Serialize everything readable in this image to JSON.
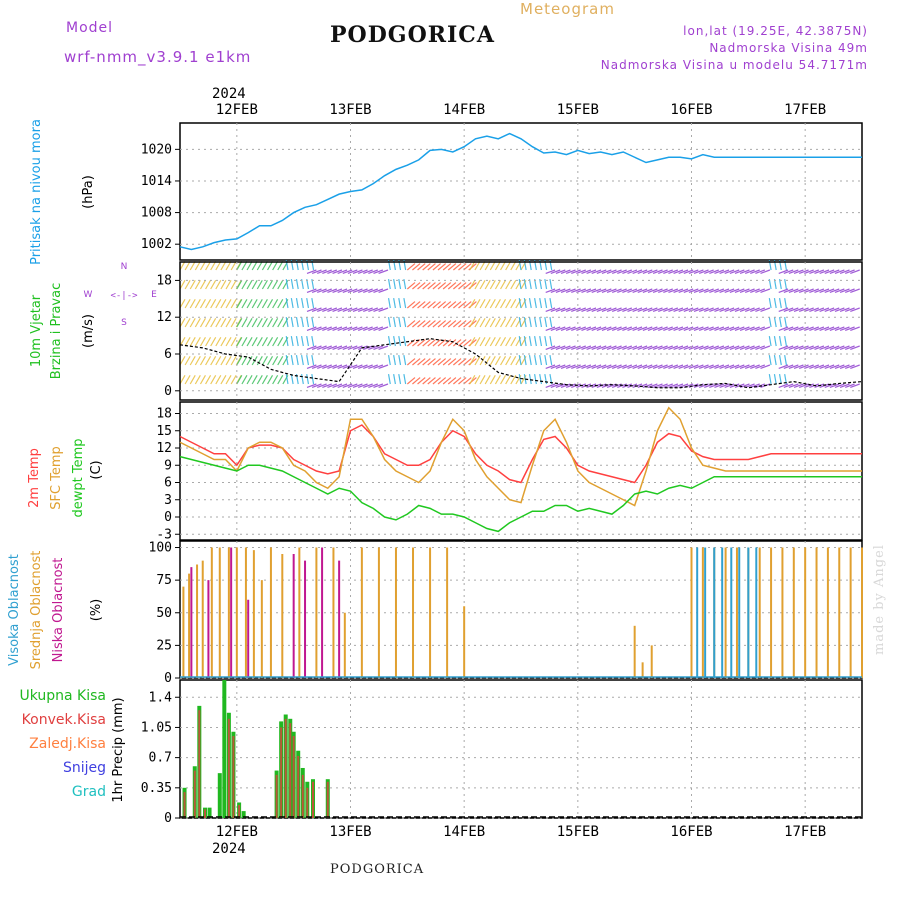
{
  "header": {
    "model_label": "Model",
    "model_name": "wrf-nmm_v3.9.1 e1km",
    "title": "PODGORICA",
    "meteogram_label": "Meteogram",
    "lonlat": "lon,lat (19.25E, 42.3875N)",
    "elevation": "Nadmorska Visina 49m",
    "elevation_model": "Nadmorska Visina u modelu 54.7171m"
  },
  "footer": {
    "station": "PODGORICA",
    "credit": "made by Angel"
  },
  "colors": {
    "pressure": "#1aa0e8",
    "temp2m": "#ff4040",
    "sfc": "#e0a030",
    "dewpt": "#20c820",
    "high_cloud": "#30a0d0",
    "mid_cloud": "#e0a030",
    "low_cloud": "#c01890",
    "precip_total": "#20b820",
    "precip_conv": "#e04040",
    "grid": "#aaaaaa"
  },
  "chart_data": [
    {
      "type": "line",
      "panel": "pressure",
      "ylabel_lines": [
        "Pritisak na nivou mora",
        "(hPa)"
      ],
      "ylim": [
        999,
        1025
      ],
      "yticks": [
        1002,
        1008,
        1014,
        1020
      ],
      "x_dates": [
        "12FEB",
        "13FEB",
        "14FEB",
        "15FEB",
        "16FEB",
        "17FEB"
      ],
      "year": "2024",
      "x": [
        0,
        0.1,
        0.2,
        0.3,
        0.4,
        0.5,
        0.6,
        0.7,
        0.8,
        0.9,
        1.0,
        1.1,
        1.2,
        1.3,
        1.4,
        1.5,
        1.6,
        1.7,
        1.8,
        1.9,
        2.0,
        2.1,
        2.2,
        2.3,
        2.4,
        2.5,
        2.6,
        2.7,
        2.8,
        2.9,
        3.0,
        3.1,
        3.2,
        3.3,
        3.4,
        3.5,
        3.6,
        3.7,
        3.8,
        3.9,
        4.0,
        4.1,
        4.2,
        4.3,
        4.4,
        4.5,
        4.6,
        4.7,
        4.8,
        4.9,
        5.0,
        5.1,
        5.2,
        5.3,
        5.4,
        5.5,
        5.6,
        5.7,
        5.8,
        5.9,
        6.0
      ],
      "values": [
        1001.5,
        1001.0,
        1001.5,
        1002.3,
        1002.8,
        1003.0,
        1004.2,
        1005.5,
        1005.5,
        1006.5,
        1008.0,
        1009.0,
        1009.5,
        1010.5,
        1011.5,
        1012.0,
        1012.3,
        1013.5,
        1015.0,
        1016.2,
        1017.0,
        1018.0,
        1019.8,
        1020.0,
        1019.5,
        1020.5,
        1022.0,
        1022.5,
        1022.0,
        1023.0,
        1022.0,
        1020.5,
        1019.3,
        1019.5,
        1019.0,
        1019.8,
        1019.2,
        1019.5,
        1019.0,
        1019.5,
        1018.5,
        1017.5,
        1018.0,
        1018.5,
        1018.5,
        1018.2,
        1019.0,
        1018.5,
        1018.5,
        1018.5,
        1018.5,
        1018.5,
        1018.5,
        1018.5,
        1018.5,
        1018.5,
        1018.5,
        1018.5,
        1018.5,
        1018.5,
        1018.5
      ]
    },
    {
      "type": "line",
      "panel": "wind",
      "ylabel_lines": [
        "10m Vjetar",
        "Brzina i Pravac",
        "(m/s)"
      ],
      "compass_labels": [
        "N",
        "W",
        "E",
        "S"
      ],
      "ylim": [
        -1.5,
        21
      ],
      "yticks": [
        0,
        6,
        12,
        18
      ],
      "x": [
        0,
        0.2,
        0.4,
        0.6,
        0.8,
        1.0,
        1.2,
        1.4,
        1.6,
        1.8,
        2.0,
        2.2,
        2.4,
        2.6,
        2.8,
        3.0,
        3.2,
        3.4,
        3.6,
        3.8,
        4.0,
        4.2,
        4.4,
        4.6,
        4.8,
        5.0,
        5.2,
        5.4,
        5.6,
        5.8,
        6.0
      ],
      "values": [
        7.5,
        7.0,
        6.0,
        5.5,
        3.5,
        2.5,
        2.0,
        1.5,
        7.0,
        7.5,
        8.0,
        8.5,
        8.0,
        6.0,
        3.0,
        2.0,
        1.5,
        1.0,
        0.8,
        1.0,
        0.8,
        0.5,
        0.5,
        1.0,
        1.2,
        0.5,
        1.0,
        1.5,
        0.8,
        1.2,
        1.5
      ]
    },
    {
      "type": "line",
      "panel": "temperature",
      "ylabel_lines": [
        "2m Temp",
        "SFC Temp",
        "dewpt Temp",
        "(C)"
      ],
      "ylim": [
        -4,
        20
      ],
      "yticks": [
        -3,
        0,
        3,
        6,
        9,
        12,
        15,
        18
      ],
      "x": [
        0,
        0.1,
        0.2,
        0.3,
        0.4,
        0.5,
        0.6,
        0.7,
        0.8,
        0.9,
        1.0,
        1.1,
        1.2,
        1.3,
        1.4,
        1.5,
        1.6,
        1.7,
        1.8,
        1.9,
        2.0,
        2.1,
        2.2,
        2.3,
        2.4,
        2.5,
        2.6,
        2.7,
        2.8,
        2.9,
        3.0,
        3.1,
        3.2,
        3.3,
        3.4,
        3.5,
        3.6,
        3.7,
        3.8,
        3.9,
        4.0,
        4.1,
        4.2,
        4.3,
        4.4,
        4.5,
        4.6,
        4.7,
        4.8,
        4.9,
        5.0,
        5.1,
        5.2,
        5.3,
        5.4,
        5.5,
        5.6,
        5.7,
        5.8,
        5.9,
        6.0
      ],
      "series": [
        {
          "name": "2m Temp",
          "color_key": "temp2m",
          "values": [
            14,
            13,
            12,
            11,
            11,
            9,
            12,
            12.5,
            12.5,
            12,
            10,
            9,
            8,
            7.5,
            8,
            15,
            16,
            14,
            11,
            10,
            9,
            9,
            10,
            13,
            15,
            14,
            11,
            9,
            8,
            6.5,
            6,
            10,
            13.5,
            14,
            12,
            9,
            8,
            7.5,
            7,
            6.5,
            6,
            9,
            13,
            14.5,
            14,
            11.5,
            10.5,
            10,
            10,
            10,
            10,
            10.5,
            11,
            11,
            11,
            11,
            11,
            11,
            11,
            11,
            11
          ]
        },
        {
          "name": "SFC Temp",
          "color_key": "sfc",
          "values": [
            13,
            12,
            11,
            10,
            10,
            8,
            12,
            13,
            13,
            12,
            9,
            8,
            6,
            5,
            7,
            17,
            17,
            14,
            10,
            8,
            7,
            6,
            8,
            13,
            17,
            15,
            10,
            7,
            5,
            3,
            2.5,
            9,
            15,
            17,
            13,
            8,
            6,
            5,
            4,
            3,
            2,
            8,
            15,
            19,
            17,
            12,
            9,
            8.5,
            8,
            8,
            8,
            8,
            8,
            8,
            8,
            8,
            8,
            8,
            8,
            8,
            8
          ]
        },
        {
          "name": "dewpt Temp",
          "color_key": "dewpt",
          "values": [
            10.5,
            10,
            9.5,
            9,
            8.5,
            8,
            9,
            9,
            8.5,
            8,
            7,
            6,
            5,
            4,
            5,
            4.5,
            2.5,
            1.5,
            0,
            -0.5,
            0.5,
            2,
            1.5,
            0.5,
            0.5,
            0,
            -1,
            -2,
            -2.5,
            -1,
            0,
            1,
            1,
            2,
            2,
            1,
            1.5,
            1,
            0.5,
            2,
            4,
            4.5,
            4,
            5,
            5.5,
            5,
            6,
            7,
            7,
            7,
            7,
            7,
            7,
            7,
            7,
            7,
            7,
            7,
            7,
            7,
            7
          ]
        }
      ]
    },
    {
      "type": "bar",
      "panel": "cloud",
      "ylabel_lines": [
        "Visoka Oblacnost",
        "Srednja Oblacnost",
        "Niska Oblacnost",
        "(%)"
      ],
      "ylim": [
        0,
        105
      ],
      "yticks": [
        0,
        25,
        50,
        75,
        100
      ],
      "series": [
        {
          "name": "Srednja Oblacnost",
          "color_key": "mid_cloud",
          "x": [
            0.03,
            0.08,
            0.15,
            0.2,
            0.28,
            0.35,
            0.43,
            0.5,
            0.58,
            0.65,
            0.72,
            0.8,
            0.9,
            1.05,
            1.2,
            1.35,
            1.45,
            1.6,
            1.75,
            1.9,
            2.05,
            2.2,
            2.35,
            2.5,
            4.0,
            4.07,
            4.15,
            4.5,
            4.6,
            4.7,
            4.8,
            4.9,
            5.0,
            5.1,
            5.2,
            5.3,
            5.4,
            5.5,
            5.6,
            5.7,
            5.8,
            5.9,
            6.0
          ],
          "values": [
            70,
            80,
            87,
            90,
            100,
            100,
            100,
            100,
            100,
            98,
            75,
            100,
            95,
            100,
            100,
            100,
            50,
            100,
            100,
            100,
            100,
            100,
            100,
            55,
            40,
            12,
            25,
            100,
            100,
            100,
            100,
            100,
            100,
            100,
            100,
            100,
            100,
            100,
            100,
            100,
            100,
            100,
            100
          ]
        },
        {
          "name": "Niska Oblacnost",
          "color_key": "low_cloud",
          "x": [
            0.1,
            0.25,
            0.45,
            0.6,
            1.0,
            1.1,
            1.25,
            1.4
          ],
          "values": [
            85,
            75,
            100,
            60,
            95,
            90,
            100,
            90
          ]
        },
        {
          "name": "Visoka Oblacnost",
          "color_key": "high_cloud",
          "x": [
            4.55,
            4.62,
            4.7,
            4.77,
            4.85,
            4.92,
            5.0,
            5.07
          ],
          "values": [
            100,
            100,
            100,
            100,
            100,
            100,
            100,
            100
          ]
        }
      ]
    },
    {
      "type": "bar",
      "panel": "precip",
      "ylabel_lines": [
        "1hr Precip (mm)"
      ],
      "legend": [
        "Ukupna Kisa",
        "Konvek.Kisa",
        "Zaledj.Kisa",
        "Snijeg",
        "Grad"
      ],
      "legend_color_keys": [
        "precip_total",
        "precip_conv",
        "sfc",
        "snow",
        "grad"
      ],
      "legend_colors": {
        "snow": "#4040e0",
        "grad": "#20c0c0"
      },
      "ylim": [
        0,
        1.6
      ],
      "yticks": [
        0,
        0.35,
        0.7,
        1.05,
        1.4
      ],
      "ytick_labels": [
        "0",
        "0.35",
        "0.7",
        "1.05",
        "1.4"
      ],
      "x": [
        0.04,
        0.13,
        0.17,
        0.22,
        0.26,
        0.35,
        0.39,
        0.43,
        0.47,
        0.52,
        0.56,
        0.85,
        0.89,
        0.93,
        0.97,
        1.0,
        1.04,
        1.08,
        1.12,
        1.17,
        1.3
      ],
      "values": [
        0.35,
        0.6,
        1.3,
        0.12,
        0.12,
        0.52,
        1.6,
        1.22,
        1.0,
        0.18,
        0.08,
        0.55,
        1.12,
        1.2,
        1.15,
        1.0,
        0.78,
        0.58,
        0.42,
        0.45,
        0.45
      ],
      "conv": [
        0.3,
        0.55,
        1.25,
        0.1,
        0.0,
        0.0,
        0.0,
        1.15,
        0.95,
        0.15,
        0.0,
        0.5,
        1.05,
        1.15,
        1.1,
        0.95,
        0.72,
        0.5,
        0.35,
        0.42,
        0.42
      ]
    }
  ]
}
